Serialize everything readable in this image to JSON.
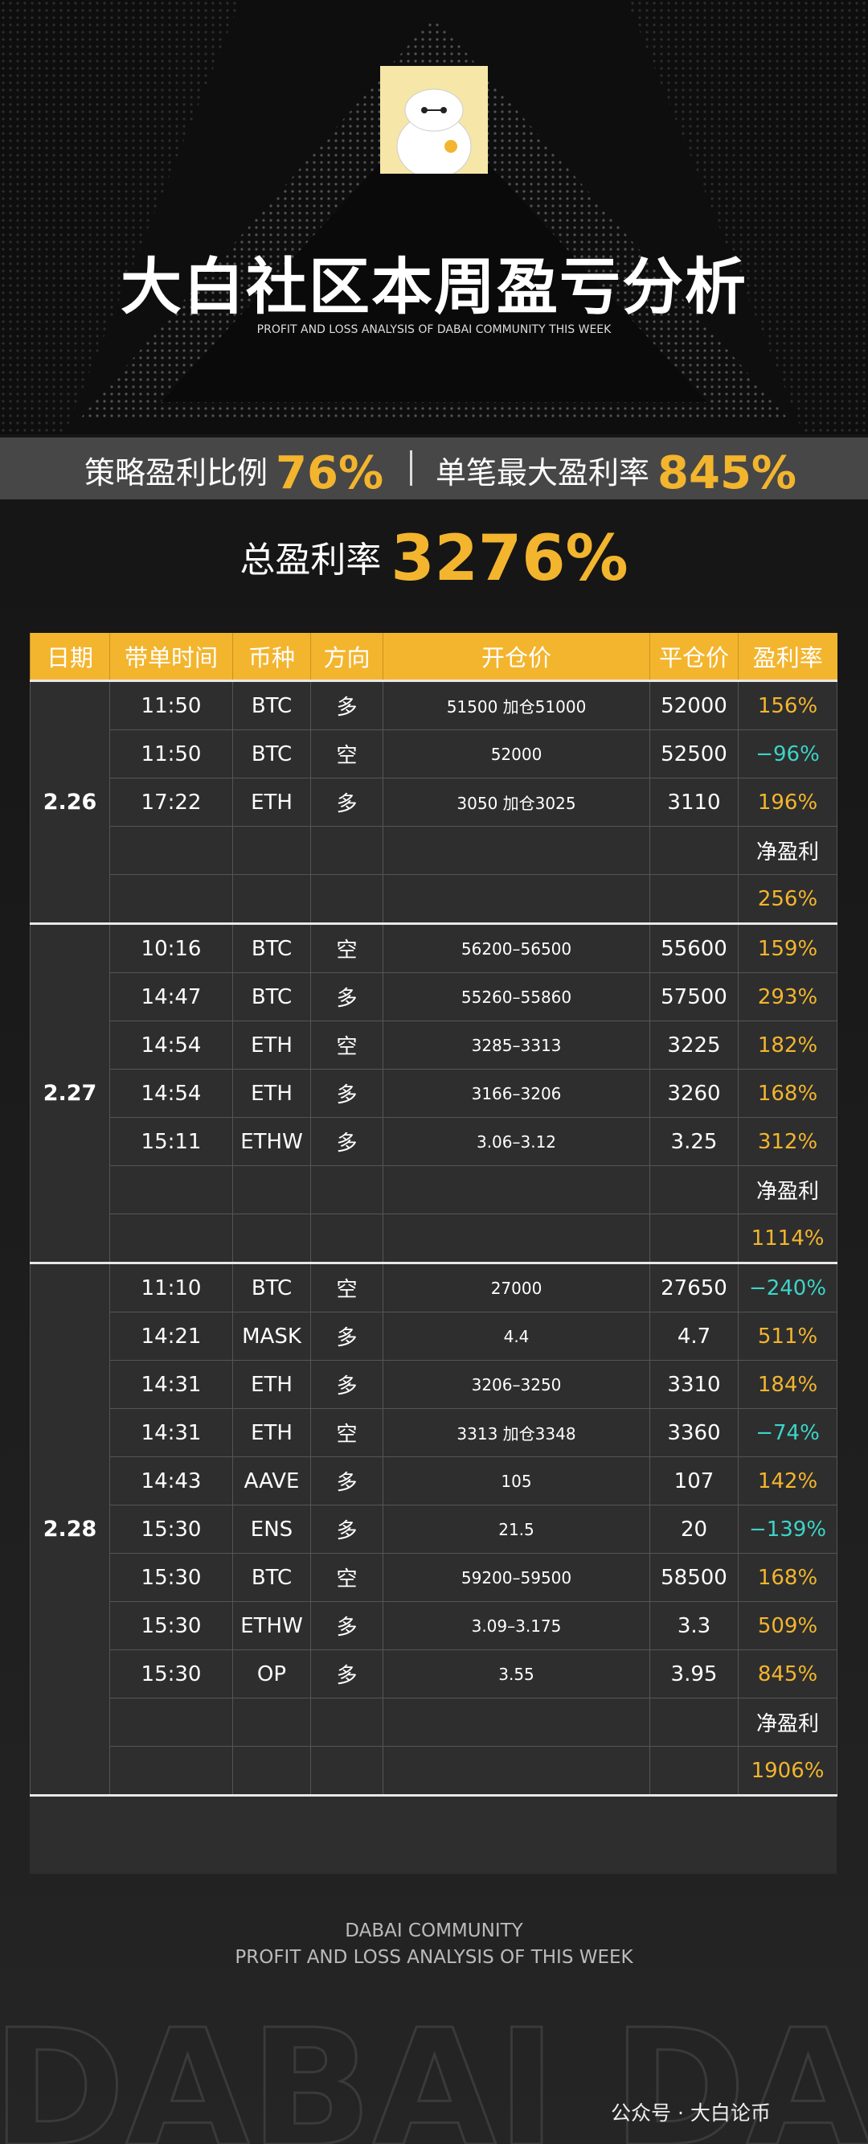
{
  "header": {
    "title": "大白社区本周盈亏分析",
    "subtitle": "PROFIT AND LOSS ANALYSIS OF DABAI COMMUNITY THIS WEEK"
  },
  "stats": {
    "win_ratio_label": "策略盈利比例",
    "win_ratio": "76%",
    "max_label": "单笔最大盈利率",
    "max": "845%",
    "total_label": "总盈利率",
    "total": "3276%"
  },
  "table": {
    "columns": [
      "日期",
      "带单时间",
      "币种",
      "方向",
      "开仓价",
      "平仓价",
      "盈利率"
    ],
    "groups": [
      {
        "date": "2.26",
        "rows": [
          [
            "11:50",
            "BTC",
            "多",
            "51500 加仓51000",
            "52000",
            "156%"
          ],
          [
            "11:50",
            "BTC",
            "空",
            "52000",
            "52500",
            "−96%"
          ],
          [
            "17:22",
            "ETH",
            "多",
            "3050 加仓3025",
            "3110",
            "196%"
          ]
        ],
        "net_label": "净盈利",
        "net": "256%"
      },
      {
        "date": "2.27",
        "rows": [
          [
            "10:16",
            "BTC",
            "空",
            "56200–56500",
            "55600",
            "159%"
          ],
          [
            "14:47",
            "BTC",
            "多",
            "55260–55860",
            "57500",
            "293%"
          ],
          [
            "14:54",
            "ETH",
            "空",
            "3285–3313",
            "3225",
            "182%"
          ],
          [
            "14:54",
            "ETH",
            "多",
            "3166–3206",
            "3260",
            "168%"
          ],
          [
            "15:11",
            "ETHW",
            "多",
            "3.06–3.12",
            "3.25",
            "312%"
          ]
        ],
        "net_label": "净盈利",
        "net": "1114%"
      },
      {
        "date": "2.28",
        "rows": [
          [
            "11:10",
            "BTC",
            "空",
            "27000",
            "27650",
            "−240%"
          ],
          [
            "14:21",
            "MASK",
            "多",
            "4.4",
            "4.7",
            "511%"
          ],
          [
            "14:31",
            "ETH",
            "多",
            "3206–3250",
            "3310",
            "184%"
          ],
          [
            "14:31",
            "ETH",
            "空",
            "3313 加仓3348",
            "3360",
            "−74%"
          ],
          [
            "14:43",
            "AAVE",
            "多",
            "105",
            "107",
            "142%"
          ],
          [
            "15:30",
            "ENS",
            "多",
            "21.5",
            "20",
            "−139%"
          ],
          [
            "15:30",
            "BTC",
            "空",
            "59200–59500",
            "58500",
            "168%"
          ],
          [
            "15:30",
            "ETHW",
            "多",
            "3.09–3.175",
            "3.3",
            "509%"
          ],
          [
            "15:30",
            "OP",
            "多",
            "3.55",
            "3.95",
            "845%"
          ]
        ],
        "net_label": "净盈利",
        "net": "1906%"
      }
    ]
  },
  "footer": {
    "brand": "DABAI COMMUNITY",
    "line": "PROFIT AND LOSS ANALYSIS OF THIS WEEK",
    "watermark": "DABAI DABAI",
    "wechat": "公众号 · 大白论币"
  }
}
